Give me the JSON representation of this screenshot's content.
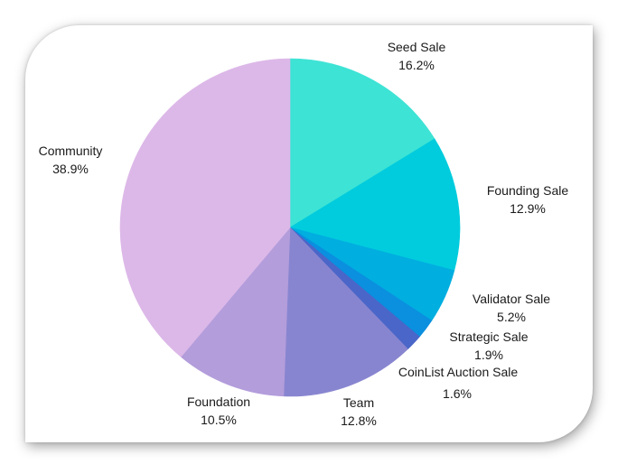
{
  "chart_data": {
    "type": "pie",
    "title": "",
    "start_angle_deg": 0,
    "direction": "clockwise",
    "slices": [
      {
        "label": "Seed Sale",
        "value": 16.2,
        "value_label": "16.2%",
        "color": "#3de3d5"
      },
      {
        "label": "Founding Sale",
        "value": 12.9,
        "value_label": "12.9%",
        "color": "#00ccdd"
      },
      {
        "label": "Validator Sale",
        "value": 5.2,
        "value_label": "5.2%",
        "color": "#00aee0"
      },
      {
        "label": "Strategic Sale",
        "value": 1.9,
        "value_label": "1.9%",
        "color": "#0b8fdf"
      },
      {
        "label": "CoinList Auction Sale",
        "value": 1.6,
        "value_label": "1.6%",
        "color": "#4a66c8"
      },
      {
        "label": "Team",
        "value": 12.8,
        "value_label": "12.8%",
        "color": "#8885d0"
      },
      {
        "label": "Foundation",
        "value": 10.5,
        "value_label": "10.5%",
        "color": "#b39ddb"
      },
      {
        "label": "Community",
        "value": 38.9,
        "value_label": "38.9%",
        "color": "#dcb8e8"
      }
    ]
  }
}
